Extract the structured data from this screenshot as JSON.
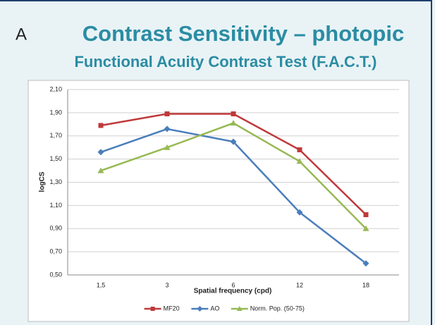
{
  "chart_data": {
    "type": "line",
    "panel_label": "A",
    "title": "Contrast Sensitivity – photopic",
    "subtitle": "Functional Acuity Contrast Test (F.A.C.T.)",
    "x_label": "Spatial frequency (cpd)",
    "y_label": "logCS",
    "categories": [
      "1,5",
      "3",
      "6",
      "12",
      "18"
    ],
    "series": [
      {
        "name": "MF20",
        "color": "#c0393b",
        "marker": "square",
        "values": [
          1.79,
          1.89,
          1.89,
          1.58,
          1.02
        ]
      },
      {
        "name": "AO",
        "color": "#4a7ebb",
        "marker": "diamond",
        "values": [
          1.56,
          1.76,
          1.65,
          1.04,
          0.6
        ]
      },
      {
        "name": "Norm. Pop. (50-75)",
        "color": "#98b954",
        "marker": "triangle",
        "values": [
          1.4,
          1.6,
          1.81,
          1.48,
          0.9
        ]
      }
    ],
    "ylim": [
      0.5,
      2.1
    ],
    "yticks": [
      {
        "value": 0.5,
        "label": "0,50"
      },
      {
        "value": 0.7,
        "label": "0,70"
      },
      {
        "value": 0.9,
        "label": "0,90"
      },
      {
        "value": 1.1,
        "label": "1,10"
      },
      {
        "value": 1.3,
        "label": "1,30"
      },
      {
        "value": 1.5,
        "label": "1,50"
      },
      {
        "value": 1.7,
        "label": "1,70"
      },
      {
        "value": 1.9,
        "label": "1,90"
      },
      {
        "value": 2.1,
        "label": "2,10"
      }
    ],
    "grid": true,
    "legend": "bottom"
  }
}
